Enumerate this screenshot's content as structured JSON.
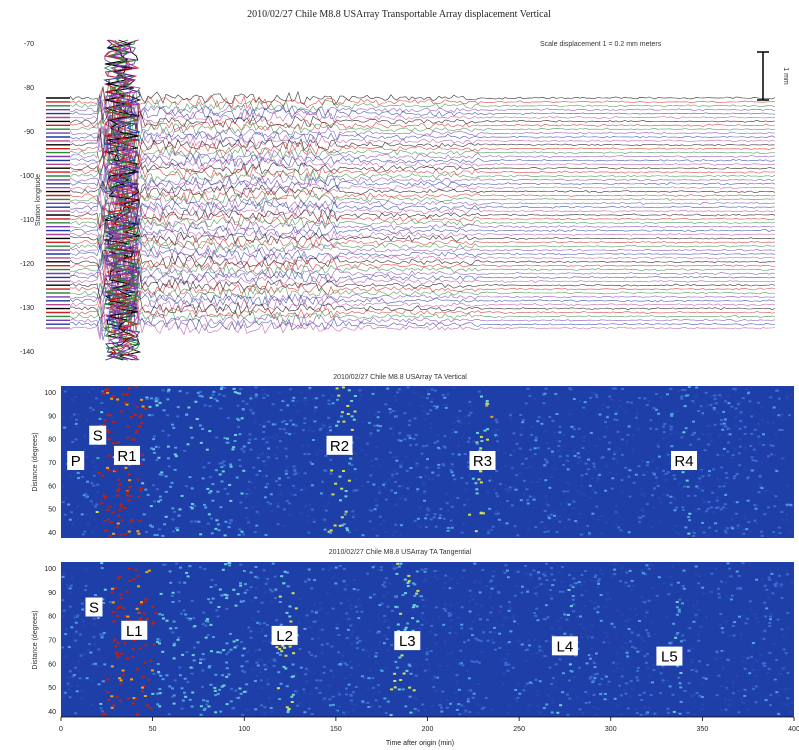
{
  "figure": {
    "main_title": "2010/02/27  Chile M8.8  USArray Transportable Array displacement  Vertical"
  },
  "panels": {
    "top": {
      "legend": "Scale displacement 1 = 0.2 mm   meters",
      "scale_bar": "1 mm",
      "ylabel": "Station longitude",
      "yticks": [
        "-70",
        "-80",
        "-90",
        "-100",
        "-110",
        "-120",
        "-130",
        "-140"
      ]
    },
    "middle": {
      "title": "2010/02/27 Chile M8.8  USArray TA  Vertical",
      "ylabel": "Distance (degrees)",
      "yticks": [
        "100",
        "90",
        "80",
        "70",
        "60",
        "50",
        "40"
      ],
      "phases": [
        "P",
        "S",
        "R1",
        "R2",
        "R3",
        "R4"
      ]
    },
    "bottom": {
      "title": "2010/02/27 Chile M8.8  USArray TA  Tangential",
      "ylabel": "Distance (degrees)",
      "yticks": [
        "100",
        "90",
        "80",
        "70",
        "60",
        "50",
        "40"
      ],
      "phases": [
        "S",
        "L1",
        "L2",
        "L3",
        "L4",
        "L5"
      ],
      "xlabel": "Time after origin (min)",
      "xticks": [
        "0",
        "50",
        "100",
        "150",
        "200",
        "250",
        "300",
        "350",
        "400"
      ]
    }
  },
  "chart_data": [
    {
      "type": "line",
      "title": "2010/02/27  Chile M8.8  USArray Transportable Array displacement  Vertical",
      "ylabel": "Station longitude",
      "series_count": 60,
      "grid": false
    },
    {
      "type": "heatmap",
      "title": "2010/02/27 Chile M8.8  USArray TA  Vertical",
      "xlabel": "Time after origin (min)",
      "ylabel": "Distance (degrees)",
      "xlim": [
        0,
        400
      ],
      "ylim": [
        40,
        100
      ],
      "annotations": [
        {
          "label": "P",
          "x": 8,
          "y": 70
        },
        {
          "label": "S",
          "x": 20,
          "y": 80
        },
        {
          "label": "R1",
          "x": 36,
          "y": 72
        },
        {
          "label": "R2",
          "x": 152,
          "y": 76
        },
        {
          "label": "R3",
          "x": 230,
          "y": 70
        },
        {
          "label": "R4",
          "x": 340,
          "y": 70
        }
      ]
    },
    {
      "type": "heatmap",
      "title": "2010/02/27 Chile M8.8  USArray TA  Tangential",
      "xlabel": "Time after origin (min)",
      "ylabel": "Distance (degrees)",
      "xlim": [
        0,
        400
      ],
      "ylim": [
        40,
        100
      ],
      "annotations": [
        {
          "label": "S",
          "x": 18,
          "y": 82
        },
        {
          "label": "L1",
          "x": 40,
          "y": 73
        },
        {
          "label": "L2",
          "x": 122,
          "y": 71
        },
        {
          "label": "L3",
          "x": 189,
          "y": 69
        },
        {
          "label": "L4",
          "x": 275,
          "y": 67
        },
        {
          "label": "L5",
          "x": 332,
          "y": 63
        }
      ]
    }
  ]
}
